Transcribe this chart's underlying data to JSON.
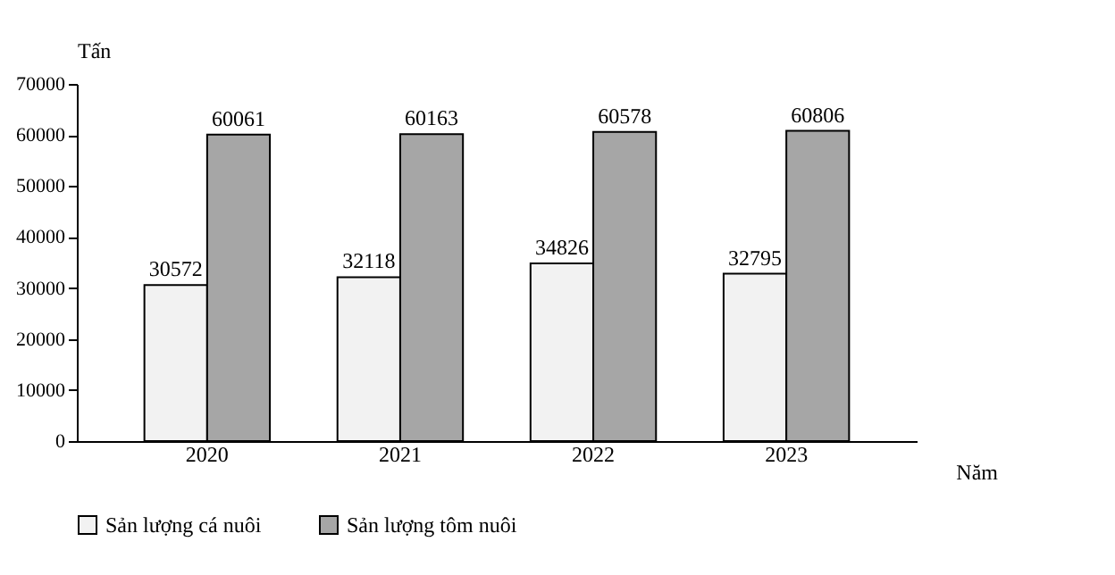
{
  "chart_data": {
    "type": "bar",
    "xlabel": "Năm",
    "ylabel": "Tấn",
    "categories": [
      "2020",
      "2021",
      "2022",
      "2023"
    ],
    "series": [
      {
        "name": "Sản lượng cá nuôi",
        "color": "#f2f2f2",
        "values": [
          30572,
          32118,
          34826,
          32795
        ]
      },
      {
        "name": "Sản lượng tôm nuôi",
        "color": "#a6a6a6",
        "values": [
          60061,
          60163,
          60578,
          60806
        ]
      }
    ],
    "ylim": [
      0,
      70000
    ],
    "yticks": [
      0,
      10000,
      20000,
      30000,
      40000,
      50000,
      60000,
      70000
    ],
    "data_labels": true,
    "legend": "bottom"
  }
}
